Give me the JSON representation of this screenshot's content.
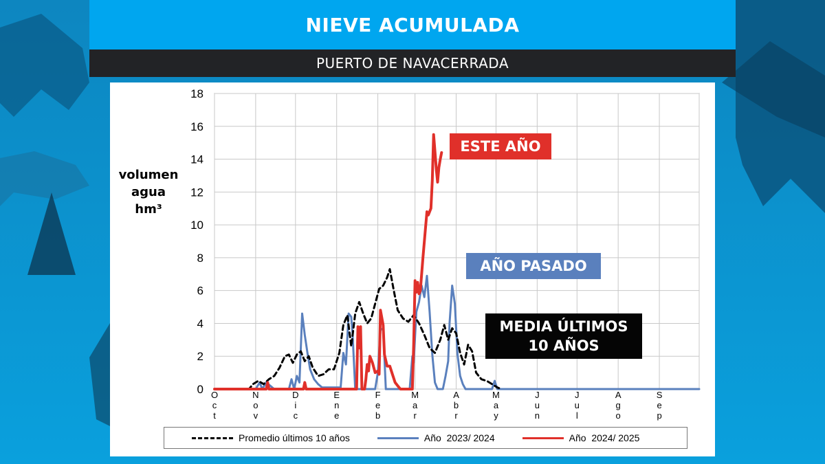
{
  "header": {
    "title": "NIEVE ACUMULADA",
    "subtitle": "PUERTO DE NAVACERRADA"
  },
  "callouts": {
    "este": "ESTE AÑO",
    "pasado": "AÑO PASADO",
    "media": "MEDIA ÚLTIMOS 10 AÑOS"
  },
  "chart_data": {
    "type": "line",
    "ylabel": "volumen agua hm³",
    "ylim": [
      0,
      18
    ],
    "yticks": [
      0,
      2,
      4,
      6,
      8,
      10,
      12,
      14,
      16,
      18
    ],
    "xlim": [
      0,
      365
    ],
    "months": [
      {
        "label": "Oct",
        "day": 0
      },
      {
        "label": "Nov",
        "day": 31
      },
      {
        "label": "Dic",
        "day": 61
      },
      {
        "label": "Ene",
        "day": 92
      },
      {
        "label": "Feb",
        "day": 123
      },
      {
        "label": "Mar",
        "day": 151
      },
      {
        "label": "Abr",
        "day": 182
      },
      {
        "label": "May",
        "day": 212
      },
      {
        "label": "Jun",
        "day": 243
      },
      {
        "label": "Jul",
        "day": 273
      },
      {
        "label": "Ago",
        "day": 304
      },
      {
        "label": "Sep",
        "day": 335
      }
    ],
    "grid": true,
    "legend_position": "bottom",
    "series": [
      {
        "name": "Promedio últimos 10 años",
        "color": "#000000",
        "style": "dashed",
        "points": [
          [
            0,
            0
          ],
          [
            26,
            0
          ],
          [
            29,
            0.3
          ],
          [
            33,
            0.5
          ],
          [
            37,
            0.3
          ],
          [
            41,
            0.6
          ],
          [
            45,
            0.8
          ],
          [
            49,
            1.3
          ],
          [
            53,
            2.0
          ],
          [
            56,
            2.1
          ],
          [
            59,
            1.6
          ],
          [
            62,
            2.1
          ],
          [
            65,
            2.3
          ],
          [
            68,
            1.7
          ],
          [
            71,
            2.0
          ],
          [
            74,
            1.3
          ],
          [
            78,
            0.8
          ],
          [
            82,
            0.9
          ],
          [
            86,
            1.2
          ],
          [
            90,
            1.2
          ],
          [
            94,
            2.2
          ],
          [
            97,
            3.9
          ],
          [
            100,
            4.5
          ],
          [
            103,
            2.6
          ],
          [
            106,
            4.6
          ],
          [
            109,
            5.3
          ],
          [
            112,
            4.6
          ],
          [
            115,
            4.0
          ],
          [
            118,
            4.3
          ],
          [
            121,
            5.2
          ],
          [
            124,
            6.1
          ],
          [
            127,
            6.3
          ],
          [
            130,
            6.8
          ],
          [
            132,
            7.3
          ],
          [
            135,
            6.0
          ],
          [
            138,
            4.8
          ],
          [
            142,
            4.3
          ],
          [
            146,
            4.1
          ],
          [
            150,
            4.5
          ],
          [
            154,
            4.0
          ],
          [
            158,
            3.3
          ],
          [
            162,
            2.5
          ],
          [
            166,
            2.2
          ],
          [
            170,
            3.0
          ],
          [
            173,
            3.9
          ],
          [
            176,
            3.0
          ],
          [
            179,
            3.7
          ],
          [
            182,
            3.4
          ],
          [
            185,
            2.2
          ],
          [
            188,
            1.5
          ],
          [
            191,
            2.7
          ],
          [
            194,
            2.3
          ],
          [
            197,
            1.0
          ],
          [
            201,
            0.6
          ],
          [
            205,
            0.5
          ],
          [
            209,
            0.3
          ],
          [
            213,
            0.1
          ],
          [
            216,
            0
          ]
        ]
      },
      {
        "name": "Año  2023/ 2024",
        "color": "#5a80bd",
        "style": "solid",
        "points": [
          [
            0,
            0
          ],
          [
            31,
            0
          ],
          [
            34,
            0.4
          ],
          [
            36,
            0
          ],
          [
            39,
            0.4
          ],
          [
            42,
            0.2
          ],
          [
            45,
            0
          ],
          [
            56,
            0
          ],
          [
            58,
            0.6
          ],
          [
            60,
            0
          ],
          [
            62,
            0.8
          ],
          [
            64,
            0.4
          ],
          [
            66,
            4.6
          ],
          [
            68,
            3.3
          ],
          [
            70,
            2.2
          ],
          [
            72,
            1.2
          ],
          [
            75,
            0.6
          ],
          [
            78,
            0.3
          ],
          [
            81,
            0.1
          ],
          [
            95,
            0.1
          ],
          [
            97,
            2.2
          ],
          [
            99,
            1.5
          ],
          [
            101,
            4.6
          ],
          [
            103,
            4.4
          ],
          [
            104,
            3.3
          ],
          [
            106,
            0
          ],
          [
            121,
            0
          ],
          [
            123,
            1.0
          ],
          [
            125,
            3.6
          ],
          [
            127,
            3.7
          ],
          [
            129,
            0
          ],
          [
            147,
            0
          ],
          [
            149,
            2.0
          ],
          [
            150,
            1.6
          ],
          [
            152,
            4.7
          ],
          [
            154,
            5.3
          ],
          [
            156,
            6.3
          ],
          [
            158,
            5.6
          ],
          [
            160,
            6.9
          ],
          [
            162,
            4.7
          ],
          [
            164,
            2.1
          ],
          [
            166,
            0.4
          ],
          [
            168,
            0
          ],
          [
            172,
            0
          ],
          [
            174,
            0.8
          ],
          [
            176,
            1.7
          ],
          [
            177,
            4.0
          ],
          [
            179,
            6.3
          ],
          [
            181,
            5.2
          ],
          [
            183,
            2.1
          ],
          [
            185,
            0.8
          ],
          [
            187,
            0.3
          ],
          [
            189,
            0
          ],
          [
            209,
            0
          ],
          [
            211,
            0.5
          ],
          [
            213,
            0
          ],
          [
            365,
            0
          ]
        ]
      },
      {
        "name": "Año  2024/ 2025",
        "color": "#e0302a",
        "style": "solid",
        "points": [
          [
            0,
            0
          ],
          [
            39,
            0
          ],
          [
            40,
            0.4
          ],
          [
            41,
            0
          ],
          [
            67,
            0
          ],
          [
            68,
            0.4
          ],
          [
            69,
            0
          ],
          [
            107,
            0
          ],
          [
            108,
            3.8
          ],
          [
            109,
            2.5
          ],
          [
            110,
            3.8
          ],
          [
            111,
            0
          ],
          [
            113,
            0
          ],
          [
            114,
            0.6
          ],
          [
            115,
            1.5
          ],
          [
            116,
            1.1
          ],
          [
            117,
            2.0
          ],
          [
            119,
            1.6
          ],
          [
            121,
            1.0
          ],
          [
            123,
            1.1
          ],
          [
            124,
            0.9
          ],
          [
            125,
            4.8
          ],
          [
            127,
            3.9
          ],
          [
            128,
            2.1
          ],
          [
            130,
            1.4
          ],
          [
            132,
            1.4
          ],
          [
            134,
            0.9
          ],
          [
            136,
            0.4
          ],
          [
            138,
            0.2
          ],
          [
            140,
            0
          ],
          [
            149,
            0
          ],
          [
            150,
            2.7
          ],
          [
            151,
            6.6
          ],
          [
            152,
            5.9
          ],
          [
            153,
            6.5
          ],
          [
            154,
            5.8
          ],
          [
            155,
            6.0
          ],
          [
            157,
            8.0
          ],
          [
            159,
            9.9
          ],
          [
            160,
            10.8
          ],
          [
            161,
            10.6
          ],
          [
            162,
            10.8
          ],
          [
            163,
            11.0
          ],
          [
            164,
            12.7
          ],
          [
            165,
            15.5
          ],
          [
            166,
            14.5
          ],
          [
            167,
            13.4
          ],
          [
            168,
            12.6
          ],
          [
            169,
            13.5
          ],
          [
            170,
            14.0
          ],
          [
            171,
            14.4
          ]
        ]
      }
    ]
  }
}
